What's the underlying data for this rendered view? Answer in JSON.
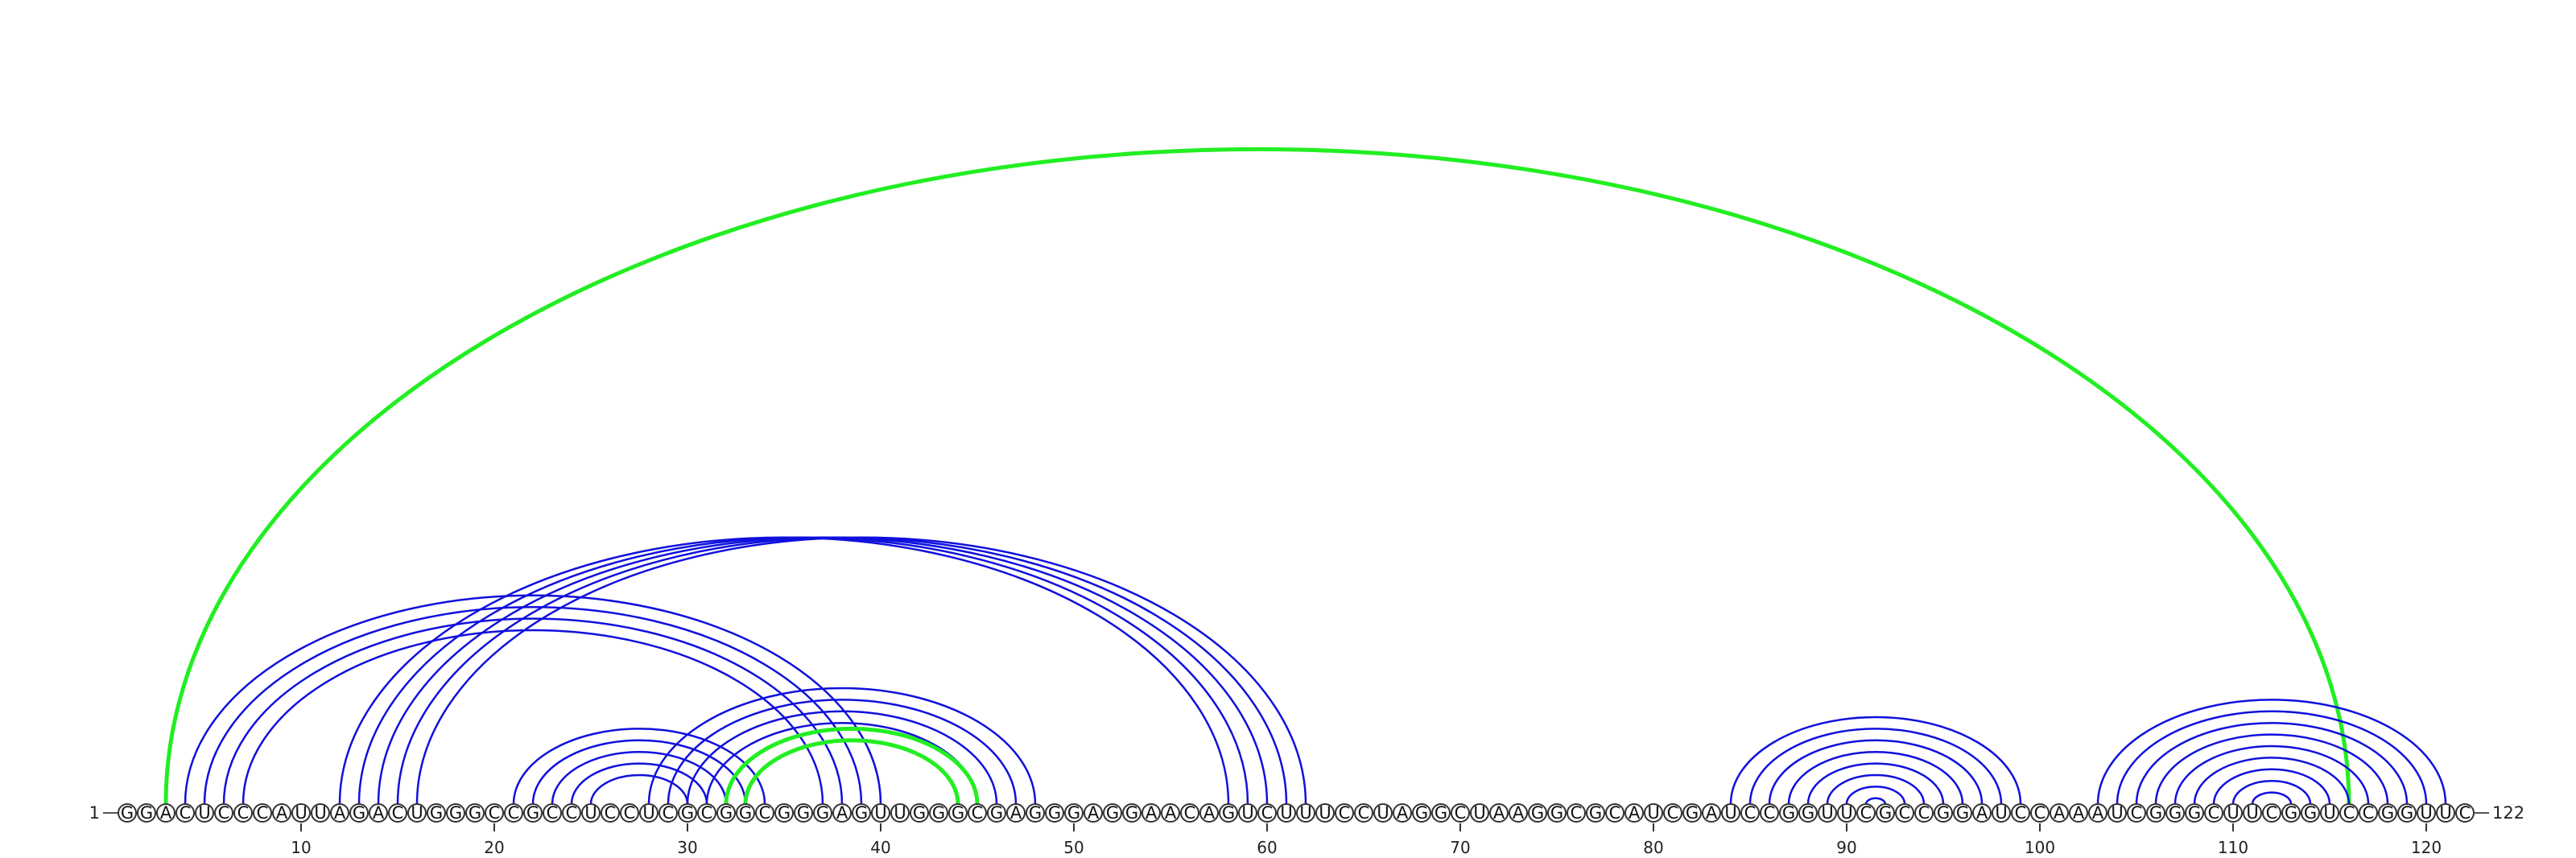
{
  "sequence": "GGACUCCCAUUAGACUGGGCCGCCUCCUCGCGGCGGGAGUUGGGCGAGGGAGGAACAGUCUUUCCUAGGCUAAGGCGCAUCGAUCCGGUUCGCCGGAUCCAAAUCGGGCUUCGGUCCGGUUC",
  "start_label": "1",
  "end_label": "122",
  "ticks": [
    10,
    20,
    30,
    40,
    50,
    60,
    70,
    80,
    90,
    100,
    110,
    120
  ],
  "colors": {
    "stem": "#1010dd",
    "pseudoknot": "#22ee22"
  },
  "stems": [
    {
      "type": "pseudoknot",
      "pairs": [
        [
          3,
          116
        ]
      ]
    },
    {
      "type": "stem",
      "pairs": [
        [
          4,
          40
        ],
        [
          5,
          39
        ],
        [
          6,
          38
        ],
        [
          7,
          37
        ]
      ]
    },
    {
      "type": "stem",
      "pairs": [
        [
          12,
          58
        ],
        [
          13,
          59
        ],
        [
          14,
          60
        ],
        [
          15,
          61
        ],
        [
          16,
          62
        ]
      ]
    },
    {
      "type": "stem",
      "pairs": [
        [
          21,
          34
        ],
        [
          22,
          33
        ],
        [
          23,
          32
        ],
        [
          24,
          31
        ],
        [
          25,
          30
        ]
      ]
    },
    {
      "type": "stem",
      "pairs": [
        [
          28,
          48
        ],
        [
          29,
          47
        ],
        [
          30,
          46
        ],
        [
          31,
          45
        ]
      ]
    },
    {
      "type": "pseudoknot",
      "pairs": [
        [
          32,
          45
        ],
        [
          33,
          44
        ]
      ]
    },
    {
      "type": "stem",
      "pairs": [
        [
          84,
          99
        ],
        [
          85,
          98
        ],
        [
          86,
          97
        ],
        [
          87,
          96
        ],
        [
          88,
          95
        ],
        [
          89,
          94
        ],
        [
          90,
          93
        ],
        [
          91,
          92
        ]
      ]
    },
    {
      "type": "stem",
      "pairs": [
        [
          103,
          121
        ],
        [
          104,
          120
        ],
        [
          105,
          119
        ],
        [
          106,
          118
        ],
        [
          107,
          117
        ],
        [
          108,
          116
        ],
        [
          109,
          115
        ],
        [
          110,
          114
        ],
        [
          111,
          113
        ]
      ]
    }
  ]
}
